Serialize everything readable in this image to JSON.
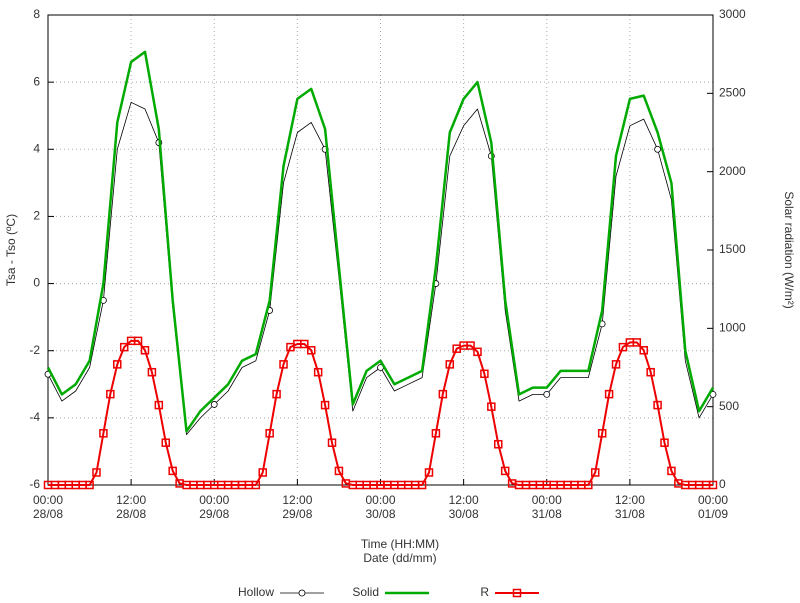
{
  "chart_data": {
    "type": "line",
    "xlabel": "Time (HH:MM)\nDate (dd/mm)",
    "ylabel": "Tsa - Tso (ºC)",
    "y2label": "Solar radiation (W/m²)",
    "xlim": [
      0,
      96
    ],
    "xticks": [
      {
        "value": 0,
        "label": "00:00\n28/08"
      },
      {
        "value": 12,
        "label": "12:00\n28/08"
      },
      {
        "value": 24,
        "label": "00:00\n29/08"
      },
      {
        "value": 36,
        "label": "12:00\n29/08"
      },
      {
        "value": 48,
        "label": "00:00\n30/08"
      },
      {
        "value": 60,
        "label": "12:00\n30/08"
      },
      {
        "value": 72,
        "label": "00:00\n31/08"
      },
      {
        "value": 84,
        "label": "12:00\n31/08"
      },
      {
        "value": 96,
        "label": "00:00\n01/09"
      }
    ],
    "ylim": [
      -6,
      8
    ],
    "yticks": [
      -6,
      -4,
      -2,
      0,
      2,
      4,
      6,
      8
    ],
    "y2lim": [
      0,
      3000
    ],
    "y2ticks": [
      0,
      500,
      1000,
      1500,
      2000,
      2500,
      3000
    ],
    "grid": true,
    "series": [
      {
        "name": "Hollow",
        "color": "#000000",
        "marker": "circle",
        "x": [
          0,
          2,
          4,
          6,
          8,
          10,
          12,
          14,
          16,
          18,
          20,
          22,
          24,
          26,
          28,
          30,
          32,
          34,
          36,
          38,
          40,
          42,
          44,
          46,
          48,
          50,
          52,
          54,
          56,
          58,
          60,
          62,
          64,
          66,
          68,
          70,
          72,
          74,
          76,
          78,
          80,
          82,
          84,
          86,
          88,
          90,
          92,
          94,
          96
        ],
        "values": [
          -2.7,
          -3.5,
          -3.2,
          -2.5,
          -0.5,
          4.0,
          5.4,
          5.2,
          4.2,
          -0.7,
          -4.5,
          -4.0,
          -3.6,
          -3.2,
          -2.5,
          -2.3,
          -0.8,
          3.0,
          4.5,
          4.8,
          4.0,
          0.2,
          -3.8,
          -2.8,
          -2.5,
          -3.2,
          -3.0,
          -2.8,
          0.0,
          3.8,
          4.7,
          5.2,
          3.8,
          -0.8,
          -3.5,
          -3.3,
          -3.3,
          -2.8,
          -2.8,
          -2.8,
          -1.2,
          3.2,
          4.7,
          4.9,
          4.0,
          2.5,
          -2.3,
          -4.0,
          -3.3
        ]
      },
      {
        "name": "Solid",
        "color": "#00aa00",
        "marker": "none",
        "x": [
          0,
          2,
          4,
          6,
          8,
          10,
          12,
          14,
          16,
          18,
          20,
          22,
          24,
          26,
          28,
          30,
          32,
          34,
          36,
          38,
          40,
          42,
          44,
          46,
          48,
          50,
          52,
          54,
          56,
          58,
          60,
          62,
          64,
          66,
          68,
          70,
          72,
          74,
          76,
          78,
          80,
          82,
          84,
          86,
          88,
          90,
          92,
          94,
          96
        ],
        "values": [
          -2.5,
          -3.3,
          -3.0,
          -2.3,
          0.0,
          4.8,
          6.6,
          6.9,
          4.6,
          -0.5,
          -4.4,
          -3.8,
          -3.4,
          -3.0,
          -2.3,
          -2.1,
          -0.5,
          3.5,
          5.5,
          5.8,
          4.6,
          0.5,
          -3.6,
          -2.6,
          -2.3,
          -3.0,
          -2.8,
          -2.6,
          0.5,
          4.5,
          5.5,
          6.0,
          4.2,
          -0.5,
          -3.3,
          -3.1,
          -3.1,
          -2.6,
          -2.6,
          -2.6,
          -0.8,
          3.8,
          5.5,
          5.6,
          4.5,
          3.0,
          -2.0,
          -3.8,
          -3.1
        ]
      },
      {
        "name": "R",
        "color": "#ee0000",
        "marker": "square",
        "axis": "y2",
        "x": [
          0,
          1,
          2,
          3,
          4,
          5,
          6,
          7,
          8,
          9,
          10,
          11,
          12,
          13,
          14,
          15,
          16,
          17,
          18,
          19,
          20,
          21,
          22,
          23,
          24,
          25,
          26,
          27,
          28,
          29,
          30,
          31,
          32,
          33,
          34,
          35,
          36,
          37,
          38,
          39,
          40,
          41,
          42,
          43,
          44,
          45,
          46,
          47,
          48,
          49,
          50,
          51,
          52,
          53,
          54,
          55,
          56,
          57,
          58,
          59,
          60,
          61,
          62,
          63,
          64,
          65,
          66,
          67,
          68,
          69,
          70,
          71,
          72,
          73,
          74,
          75,
          76,
          77,
          78,
          79,
          80,
          81,
          82,
          83,
          84,
          85,
          86,
          87,
          88,
          89,
          90,
          91,
          92,
          93,
          94,
          95,
          96
        ],
        "values": [
          0,
          0,
          0,
          0,
          0,
          0,
          0,
          80,
          330,
          580,
          770,
          880,
          920,
          920,
          860,
          720,
          510,
          270,
          90,
          10,
          0,
          0,
          0,
          0,
          0,
          0,
          0,
          0,
          0,
          0,
          0,
          80,
          330,
          580,
          770,
          880,
          900,
          900,
          860,
          720,
          510,
          270,
          90,
          10,
          0,
          0,
          0,
          0,
          0,
          0,
          0,
          0,
          0,
          0,
          0,
          80,
          330,
          580,
          770,
          870,
          890,
          890,
          850,
          710,
          500,
          260,
          90,
          10,
          0,
          0,
          0,
          0,
          0,
          0,
          0,
          0,
          0,
          0,
          0,
          80,
          330,
          580,
          770,
          880,
          910,
          910,
          860,
          720,
          510,
          270,
          90,
          10,
          0,
          0,
          0,
          0,
          0
        ]
      }
    ]
  }
}
